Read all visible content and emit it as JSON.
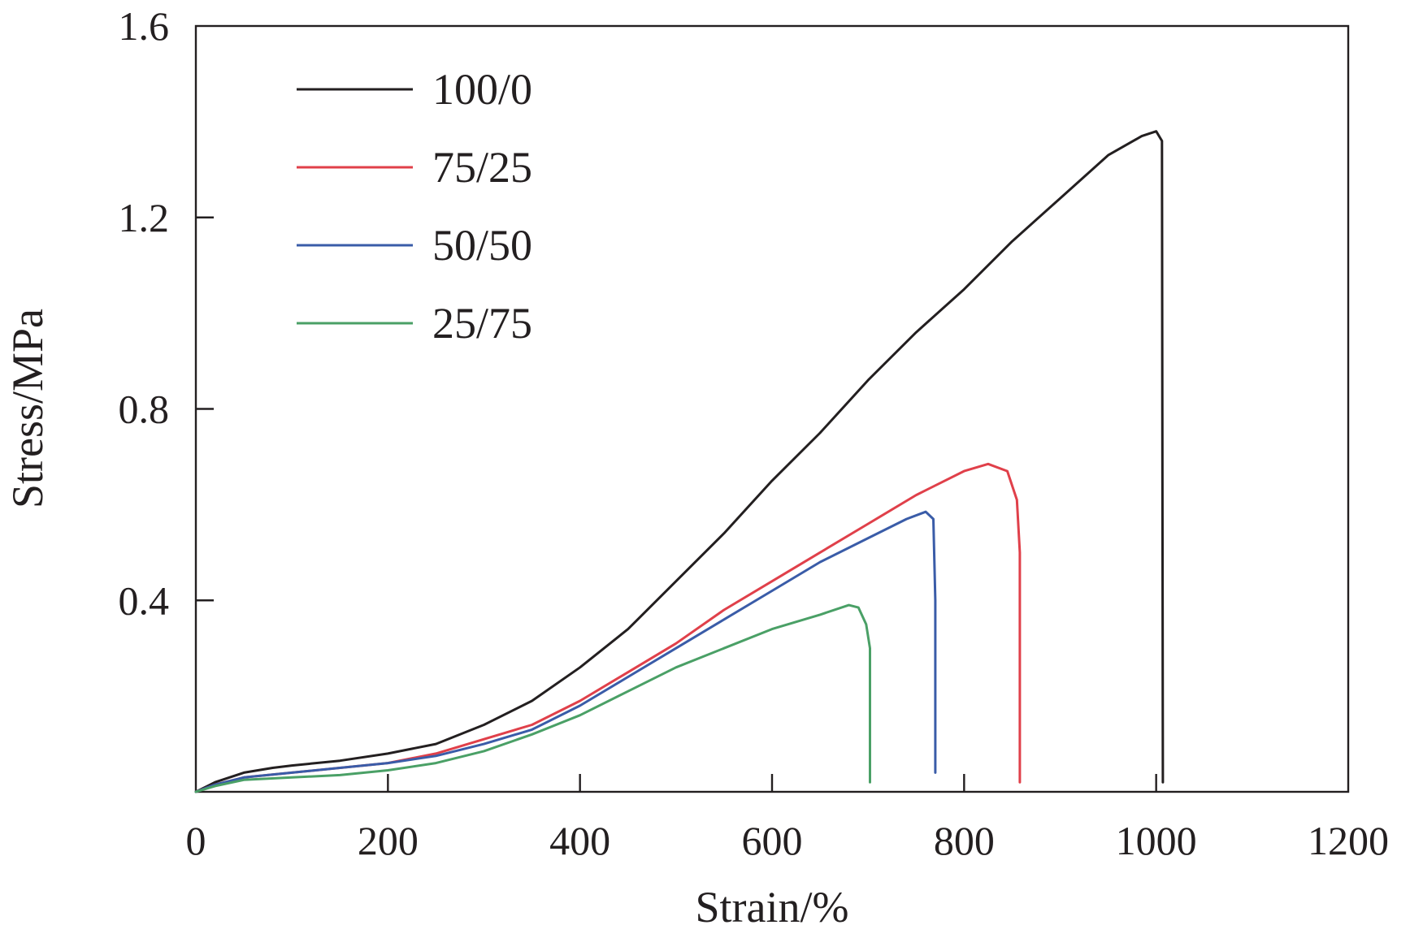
{
  "chart_data": {
    "type": "line",
    "title": "",
    "xlabel": "Strain/%",
    "ylabel": "Stress/MPa",
    "xlim": [
      0,
      1200
    ],
    "ylim": [
      0,
      1.6
    ],
    "xticks": [
      0,
      200,
      400,
      600,
      800,
      1000,
      1200
    ],
    "xtick_labels": [
      "0",
      "200",
      "400",
      "600",
      "800",
      "1000",
      "1200"
    ],
    "yticks": [
      0.4,
      0.8,
      1.2,
      1.6
    ],
    "ytick_labels": [
      "0.4",
      "0.8",
      "1.2",
      "1.6"
    ],
    "grid": false,
    "legend_position": "top-left",
    "series": [
      {
        "name": "100/0",
        "color": "#231f20",
        "points": [
          [
            0,
            0
          ],
          [
            20,
            0.02
          ],
          [
            50,
            0.04
          ],
          [
            80,
            0.05
          ],
          [
            100,
            0.055
          ],
          [
            150,
            0.065
          ],
          [
            200,
            0.08
          ],
          [
            250,
            0.1
          ],
          [
            300,
            0.14
          ],
          [
            350,
            0.19
          ],
          [
            400,
            0.26
          ],
          [
            450,
            0.34
          ],
          [
            500,
            0.44
          ],
          [
            550,
            0.54
          ],
          [
            600,
            0.65
          ],
          [
            650,
            0.75
          ],
          [
            700,
            0.86
          ],
          [
            750,
            0.96
          ],
          [
            800,
            1.05
          ],
          [
            850,
            1.15
          ],
          [
            900,
            1.24
          ],
          [
            950,
            1.33
          ],
          [
            985,
            1.37
          ],
          [
            1000,
            1.38
          ],
          [
            1006,
            1.36
          ],
          [
            1007,
            0.02
          ]
        ]
      },
      {
        "name": "75/25",
        "color": "#e0404a",
        "points": [
          [
            0,
            0
          ],
          [
            20,
            0.015
          ],
          [
            50,
            0.03
          ],
          [
            100,
            0.04
          ],
          [
            150,
            0.05
          ],
          [
            200,
            0.06
          ],
          [
            250,
            0.08
          ],
          [
            300,
            0.11
          ],
          [
            350,
            0.14
          ],
          [
            400,
            0.19
          ],
          [
            450,
            0.25
          ],
          [
            500,
            0.31
          ],
          [
            550,
            0.38
          ],
          [
            600,
            0.44
          ],
          [
            650,
            0.5
          ],
          [
            700,
            0.56
          ],
          [
            750,
            0.62
          ],
          [
            800,
            0.67
          ],
          [
            825,
            0.685
          ],
          [
            845,
            0.67
          ],
          [
            855,
            0.61
          ],
          [
            858,
            0.5
          ],
          [
            858,
            0.02
          ]
        ]
      },
      {
        "name": "50/50",
        "color": "#3a5ca8",
        "points": [
          [
            0,
            0
          ],
          [
            20,
            0.015
          ],
          [
            50,
            0.03
          ],
          [
            100,
            0.04
          ],
          [
            150,
            0.05
          ],
          [
            200,
            0.06
          ],
          [
            250,
            0.075
          ],
          [
            300,
            0.1
          ],
          [
            350,
            0.13
          ],
          [
            400,
            0.18
          ],
          [
            450,
            0.24
          ],
          [
            500,
            0.3
          ],
          [
            550,
            0.36
          ],
          [
            600,
            0.42
          ],
          [
            650,
            0.48
          ],
          [
            700,
            0.53
          ],
          [
            740,
            0.57
          ],
          [
            760,
            0.585
          ],
          [
            768,
            0.57
          ],
          [
            770,
            0.4
          ],
          [
            770,
            0.04
          ]
        ]
      },
      {
        "name": "25/75",
        "color": "#4aa066",
        "points": [
          [
            0,
            0
          ],
          [
            20,
            0.012
          ],
          [
            50,
            0.025
          ],
          [
            100,
            0.03
          ],
          [
            150,
            0.035
          ],
          [
            200,
            0.045
          ],
          [
            250,
            0.06
          ],
          [
            300,
            0.085
          ],
          [
            350,
            0.12
          ],
          [
            400,
            0.16
          ],
          [
            450,
            0.21
          ],
          [
            500,
            0.26
          ],
          [
            550,
            0.3
          ],
          [
            600,
            0.34
          ],
          [
            650,
            0.37
          ],
          [
            680,
            0.39
          ],
          [
            690,
            0.385
          ],
          [
            698,
            0.35
          ],
          [
            702,
            0.3
          ],
          [
            702,
            0.02
          ]
        ]
      }
    ]
  }
}
